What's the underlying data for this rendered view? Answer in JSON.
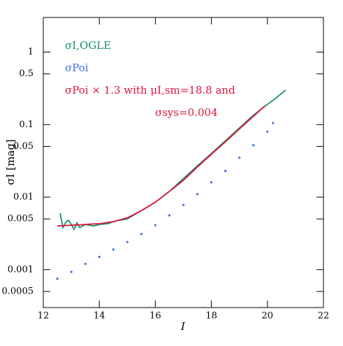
{
  "chart_data": {
    "type": "line",
    "x_label": "I",
    "y_label": "σI [mag]",
    "log_y": true,
    "xlim": [
      12,
      22
    ],
    "xticks": [
      12,
      14,
      16,
      18,
      20,
      22
    ],
    "ylim": [
      0.0003,
      3
    ],
    "yticks": [
      1,
      0.5,
      0.1,
      0.05,
      0.01,
      0.005,
      0.001,
      0.0005
    ],
    "series": [
      {
        "name": "σI,OGLE",
        "color": "#14936a",
        "mode": "line",
        "x": [
          12.6,
          12.7,
          12.8,
          12.9,
          13.0,
          13.1,
          13.2,
          13.3,
          13.5,
          13.8,
          14.0,
          14.3,
          14.6,
          15.0,
          15.5,
          16.0,
          16.5,
          17.0,
          17.5,
          18.0,
          18.5,
          19.0,
          19.5,
          20.0,
          20.3,
          20.65
        ],
        "values": [
          0.006,
          0.0038,
          0.0045,
          0.0048,
          0.0042,
          0.0036,
          0.0044,
          0.0038,
          0.0042,
          0.004,
          0.0042,
          0.0043,
          0.0047,
          0.005,
          0.0065,
          0.0085,
          0.012,
          0.018,
          0.027,
          0.04,
          0.06,
          0.09,
          0.135,
          0.19,
          0.23,
          0.3
        ]
      },
      {
        "name": "σPoi",
        "color": "#3d6ee8",
        "mode": "points",
        "x": [
          12.5,
          13.0,
          13.5,
          14.0,
          14.5,
          15.0,
          15.5,
          16.0,
          16.5,
          17.0,
          17.5,
          18.0,
          18.5,
          19.0,
          19.5,
          20.0,
          20.2
        ],
        "values": [
          0.00075,
          0.00093,
          0.0012,
          0.0015,
          0.0019,
          0.0024,
          0.0031,
          0.0041,
          0.0056,
          0.0078,
          0.011,
          0.016,
          0.023,
          0.035,
          0.052,
          0.08,
          0.105
        ]
      },
      {
        "name": "σPoi × 1.3 with μI,sm=18.8 and",
        "color": "#e0153c",
        "mode": "line",
        "x": [
          12.5,
          13.5,
          14.0,
          14.5,
          15.0,
          15.5,
          16.0,
          16.5,
          17.0,
          17.5,
          18.0,
          18.5,
          19.0,
          19.5,
          19.9
        ],
        "values": [
          0.004,
          0.0042,
          0.0043,
          0.0046,
          0.0052,
          0.0065,
          0.0085,
          0.012,
          0.017,
          0.026,
          0.039,
          0.058,
          0.087,
          0.13,
          0.18
        ]
      }
    ],
    "annotations": [
      "σsys=0.004"
    ]
  }
}
